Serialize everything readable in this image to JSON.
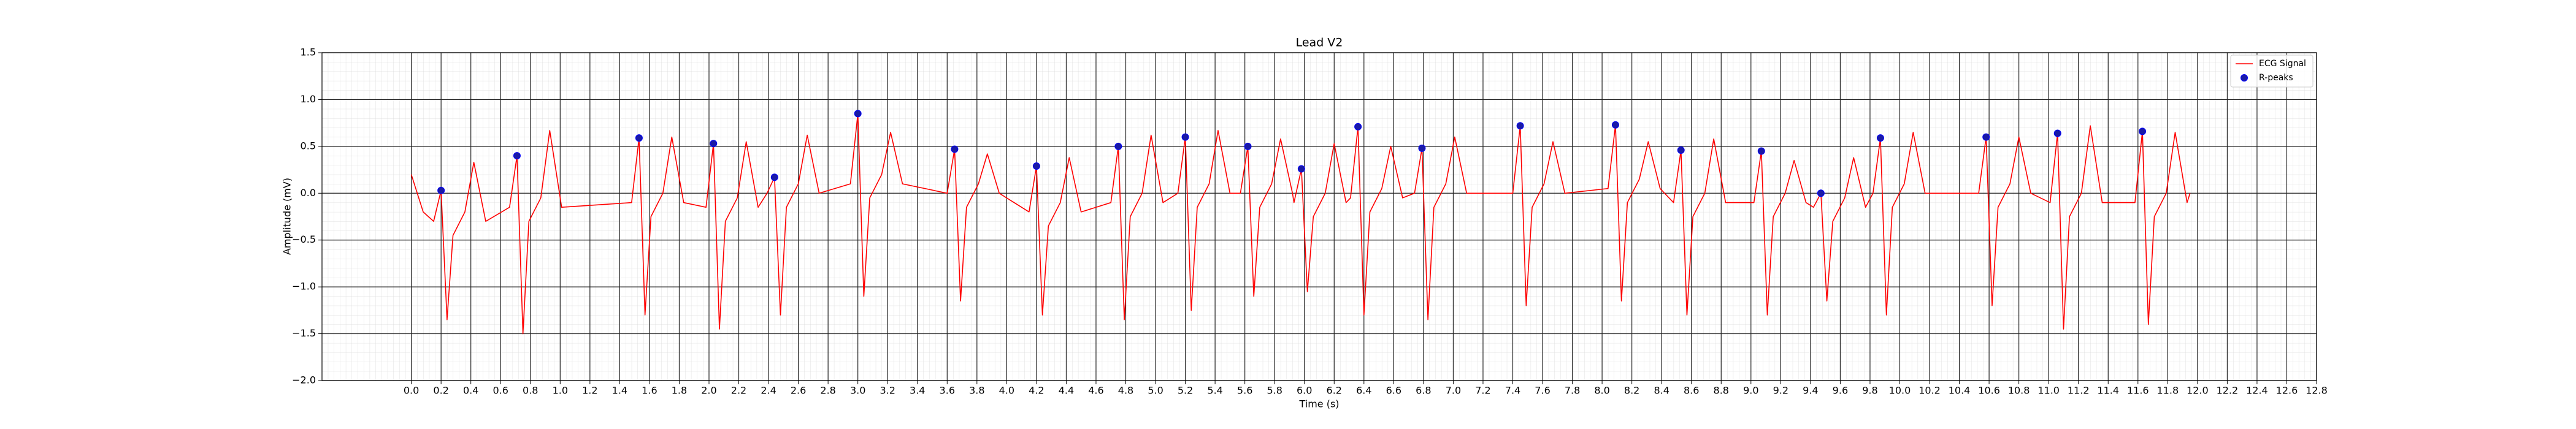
{
  "chart_data": {
    "type": "line",
    "title": "Lead V2",
    "xlabel": "Time (s)",
    "ylabel": "Amplitude (mV)",
    "xlim": [
      -0.6,
      12.8
    ],
    "xticks": [
      {
        "value": 0,
        "label": "0.0"
      },
      0.2,
      0.4,
      0.6,
      0.8,
      {
        "value": 1,
        "label": "1.0"
      },
      1.2,
      1.4,
      1.6,
      1.8,
      {
        "value": 2,
        "label": "2.0"
      },
      2.2,
      2.4,
      2.6,
      2.8,
      {
        "value": 3,
        "label": "3.0"
      },
      3.2,
      3.4,
      3.6,
      3.8,
      {
        "value": 4,
        "label": "4.0"
      },
      4.2,
      4.4,
      4.6,
      4.8,
      {
        "value": 5,
        "label": "5.0"
      },
      5.2,
      5.4,
      5.6,
      5.8,
      {
        "value": 6,
        "label": "6.0"
      },
      6.2,
      6.4,
      6.6,
      6.8,
      {
        "value": 7,
        "label": "7.0"
      },
      7.2,
      7.4,
      7.6,
      7.8,
      {
        "value": 8,
        "label": "8.0"
      },
      8.2,
      8.4,
      8.6,
      8.8,
      {
        "value": 9,
        "label": "9.0"
      },
      9.2,
      9.4,
      9.6,
      9.8,
      {
        "value": 10,
        "label": "10.0"
      },
      10.2,
      10.4,
      10.6,
      10.8,
      {
        "value": 11,
        "label": "11.0"
      },
      11.2,
      11.4,
      11.6,
      11.8,
      {
        "value": 12,
        "label": "12.0"
      },
      12.2,
      12.4,
      12.6,
      12.8
    ],
    "ylim": [
      -2,
      1.5
    ],
    "yticks": [
      {
        "value": -2,
        "label": "−2.0"
      },
      {
        "value": -1.5,
        "label": "−1.5"
      },
      {
        "value": -1,
        "label": "−1.0"
      },
      {
        "value": -0.5,
        "label": "−0.5"
      },
      {
        "value": 0,
        "label": "0.0"
      },
      0.5,
      {
        "value": 1,
        "label": "1.0"
      },
      1.5
    ],
    "grid": true,
    "minor_grid": true,
    "legend": "upper right",
    "series": [
      {
        "name": "ECG Signal",
        "type": "line",
        "color": "#ff0000",
        "x": [
          0.0,
          0.08,
          0.15,
          0.2,
          0.24,
          0.28,
          0.36,
          0.42,
          0.5,
          0.66,
          0.71,
          0.75,
          0.79,
          0.87,
          0.93,
          1.01,
          1.48,
          1.53,
          1.57,
          1.61,
          1.69,
          1.75,
          1.83,
          1.98,
          2.03,
          2.07,
          2.11,
          2.19,
          2.25,
          2.33,
          2.39,
          2.44,
          2.48,
          2.52,
          2.6,
          2.66,
          2.74,
          2.95,
          3.0,
          3.04,
          3.08,
          3.16,
          3.22,
          3.3,
          3.6,
          3.65,
          3.69,
          3.73,
          3.81,
          3.87,
          3.95,
          4.15,
          4.2,
          4.24,
          4.28,
          4.36,
          4.42,
          4.5,
          4.7,
          4.75,
          4.79,
          4.83,
          4.91,
          4.97,
          5.05,
          5.15,
          5.2,
          5.24,
          5.28,
          5.36,
          5.42,
          5.5,
          5.57,
          5.62,
          5.66,
          5.7,
          5.78,
          5.84,
          5.92,
          5.93,
          5.98,
          6.02,
          6.06,
          6.14,
          6.2,
          6.28,
          6.31,
          6.36,
          6.4,
          6.44,
          6.52,
          6.58,
          6.66,
          6.74,
          6.79,
          6.83,
          6.87,
          6.95,
          7.01,
          7.09,
          7.4,
          7.45,
          7.49,
          7.53,
          7.61,
          7.67,
          7.75,
          8.04,
          8.09,
          8.13,
          8.17,
          8.25,
          8.31,
          8.39,
          8.48,
          8.53,
          8.57,
          8.61,
          8.69,
          8.75,
          8.83,
          9.02,
          9.07,
          9.11,
          9.15,
          9.23,
          9.29,
          9.37,
          9.42,
          9.47,
          9.51,
          9.55,
          9.63,
          9.69,
          9.77,
          9.82,
          9.87,
          9.91,
          9.95,
          10.03,
          10.09,
          10.17,
          10.53,
          10.58,
          10.62,
          10.66,
          10.74,
          10.8,
          10.88,
          11.01,
          11.06,
          11.1,
          11.14,
          11.22,
          11.28,
          11.36,
          11.58,
          11.63,
          11.67,
          11.71,
          11.79,
          11.85,
          11.93,
          11.95
        ],
        "values": [
          0.2,
          -0.2,
          -0.3,
          0.03,
          -1.35,
          -0.45,
          -0.2,
          0.33,
          -0.3,
          -0.15,
          0.4,
          -1.5,
          -0.3,
          -0.05,
          0.67,
          -0.15,
          -0.1,
          0.59,
          -1.3,
          -0.25,
          0,
          0.6,
          -0.1,
          -0.15,
          0.53,
          -1.45,
          -0.3,
          -0.05,
          0.55,
          -0.15,
          0,
          0.17,
          -1.3,
          -0.15,
          0.1,
          0.62,
          0,
          0.1,
          0.85,
          -1.1,
          -0.05,
          0.2,
          0.65,
          0.1,
          0,
          0.47,
          -1.15,
          -0.15,
          0.1,
          0.42,
          0,
          -0.2,
          0.29,
          -1.3,
          -0.35,
          -0.1,
          0.38,
          -0.2,
          -0.1,
          0.5,
          -1.35,
          -0.25,
          0,
          0.62,
          -0.1,
          0,
          0.6,
          -1.25,
          -0.15,
          0.1,
          0.67,
          0,
          0,
          0.5,
          -1.1,
          -0.15,
          0.1,
          0.58,
          0,
          -0.1,
          0.26,
          -1.05,
          -0.25,
          0,
          0.53,
          -0.1,
          -0.05,
          0.71,
          -1.3,
          -0.2,
          0.05,
          0.5,
          -0.05,
          0,
          0.48,
          -1.35,
          -0.15,
          0.1,
          0.6,
          0,
          0,
          0.72,
          -1.2,
          -0.15,
          0.1,
          0.55,
          0,
          0.05,
          0.73,
          -1.15,
          -0.1,
          0.15,
          0.55,
          0.05,
          -0.1,
          0.46,
          -1.3,
          -0.25,
          0,
          0.58,
          -0.1,
          -0.1,
          0.45,
          -1.3,
          -0.25,
          0,
          0.35,
          -0.1,
          -0.15,
          0,
          -1.15,
          -0.3,
          -0.05,
          0.38,
          -0.15,
          0,
          0.59,
          -1.3,
          -0.15,
          0.1,
          0.65,
          0,
          0,
          0.6,
          -1.2,
          -0.15,
          0.1,
          0.6,
          0,
          -0.1,
          0.64,
          -1.45,
          -0.25,
          0,
          0.72,
          -0.1,
          -0.1,
          0.66,
          -1.4,
          -0.25,
          0,
          0.65,
          -0.1,
          0
        ]
      },
      {
        "name": "R-peaks",
        "type": "scatter",
        "color": "#1a1aa6",
        "x": [
          0.2,
          0.71,
          1.53,
          2.03,
          2.44,
          3.0,
          3.65,
          4.2,
          4.75,
          5.2,
          5.62,
          5.98,
          6.36,
          6.79,
          7.45,
          8.09,
          8.53,
          9.07,
          9.47,
          9.87,
          10.58,
          11.06,
          11.63
        ],
        "values": [
          0.03,
          0.4,
          0.59,
          0.53,
          0.17,
          0.85,
          0.47,
          0.29,
          0.5,
          0.6,
          0.5,
          0.26,
          0.71,
          0.48,
          0.72,
          0.73,
          0.46,
          0.45,
          0,
          0.59,
          0.6,
          0.64,
          0.66
        ]
      }
    ]
  }
}
